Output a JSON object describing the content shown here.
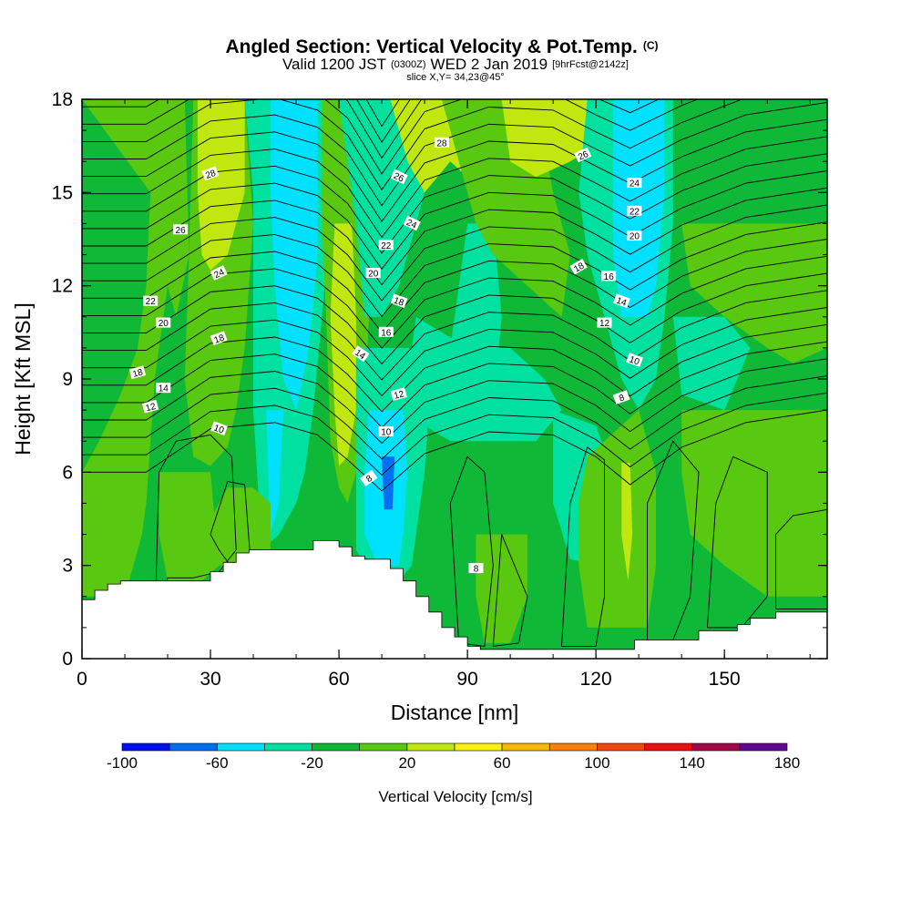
{
  "title": {
    "main": "Angled Section: Vertical Velocity & Pot.Temp.",
    "main_unit": "(C)",
    "valid_prefix": "Valid 1200 JST",
    "valid_utc": "(0300Z)",
    "valid_date": "WED 2 Jan 2019",
    "forecast": "[9hrFcst@2142z]",
    "slice": "slice X,Y= 34,23@45°"
  },
  "chart_data": {
    "type": "heatmap",
    "xlabel": "Distance [nm]",
    "ylabel": "Height [Kft MSL]",
    "xlim": [
      0,
      174
    ],
    "ylim": [
      0,
      18
    ],
    "x_ticks": [
      "0",
      "30",
      "60",
      "90",
      "120",
      "150"
    ],
    "y_ticks": [
      "0",
      "3",
      "6",
      "9",
      "12",
      "15",
      "18"
    ],
    "colorbar": {
      "label": "Vertical Velocity [cm/s]",
      "tick_labels": [
        "-100",
        "-60",
        "-20",
        "20",
        "60",
        "100",
        "140",
        "180"
      ],
      "levels": [
        -100,
        -80,
        -60,
        -40,
        -20,
        0,
        20,
        40,
        60,
        80,
        100,
        120,
        140,
        160,
        180
      ],
      "colors": [
        "#0010e8",
        "#0070f0",
        "#00e0ff",
        "#00e0a0",
        "#10b838",
        "#58c810",
        "#c0e810",
        "#f8f010",
        "#f8b808",
        "#f88010",
        "#f04810",
        "#e81010",
        "#a00848",
        "#600890"
      ]
    },
    "terrain": {
      "x": [
        0,
        3,
        6,
        9,
        12,
        15,
        18,
        21,
        24,
        27,
        30,
        33,
        36,
        39,
        42,
        45,
        48,
        51,
        54,
        57,
        60,
        63,
        66,
        69,
        72,
        75,
        78,
        81,
        84,
        87,
        90,
        93,
        96,
        99,
        102,
        105,
        108,
        111,
        114,
        117,
        120,
        123,
        126,
        129,
        132,
        135,
        138,
        141,
        144,
        147,
        150,
        153,
        156,
        159,
        162,
        165,
        168,
        171,
        174
      ],
      "height_kft": [
        1.9,
        2.2,
        2.4,
        2.5,
        2.5,
        2.5,
        2.5,
        2.5,
        2.5,
        2.5,
        2.8,
        3.1,
        3.4,
        3.5,
        3.5,
        3.5,
        3.5,
        3.5,
        3.8,
        3.8,
        3.6,
        3.3,
        3.2,
        3.2,
        2.9,
        2.5,
        2.0,
        1.5,
        1.0,
        0.7,
        0.4,
        0.3,
        0.3,
        0.3,
        0.3,
        0.3,
        0.3,
        0.3,
        0.3,
        0.3,
        0.3,
        0.3,
        0.3,
        0.6,
        0.6,
        0.6,
        0.6,
        0.6,
        0.9,
        0.9,
        0.9,
        1.1,
        1.3,
        1.3,
        1.5,
        1.5,
        1.5,
        1.5,
        1.5
      ]
    },
    "pot_temp_contour_labels": [
      "28",
      "26",
      "24",
      "22",
      "20",
      "18",
      "16",
      "14",
      "12",
      "10",
      "8"
    ]
  }
}
